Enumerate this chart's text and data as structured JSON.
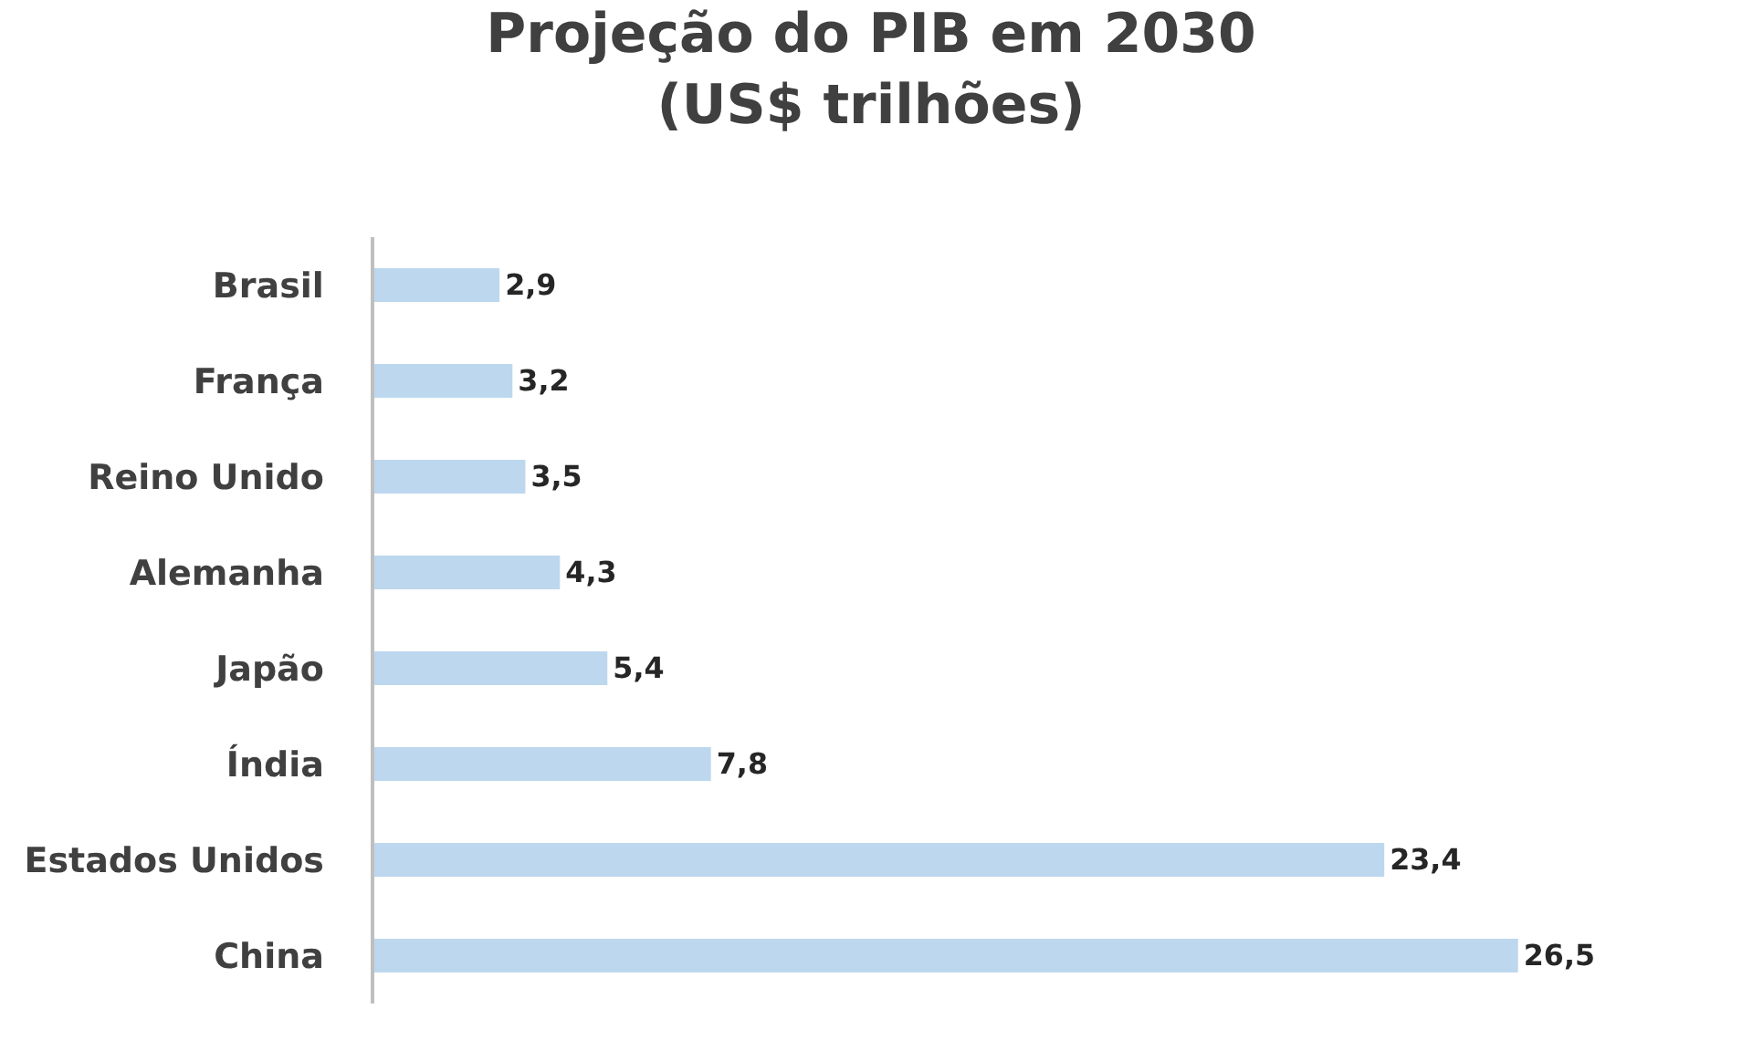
{
  "chart_data": {
    "type": "bar",
    "orientation": "horizontal",
    "title": "Projeção do PIB em 2030\n(US$ trilhões)",
    "categories": [
      "Brasil",
      "França",
      "Reino Unido",
      "Alemanha",
      "Japão",
      "Índia",
      "Estados Unidos",
      "China"
    ],
    "values": [
      2.9,
      3.2,
      3.5,
      4.3,
      5.4,
      7.8,
      23.4,
      26.5
    ],
    "value_labels": [
      "2,9",
      "3,2",
      "3,5",
      "4,3",
      "5,4",
      "7,8",
      "23,4",
      "26,5"
    ],
    "color": "#bdd7ee"
  }
}
